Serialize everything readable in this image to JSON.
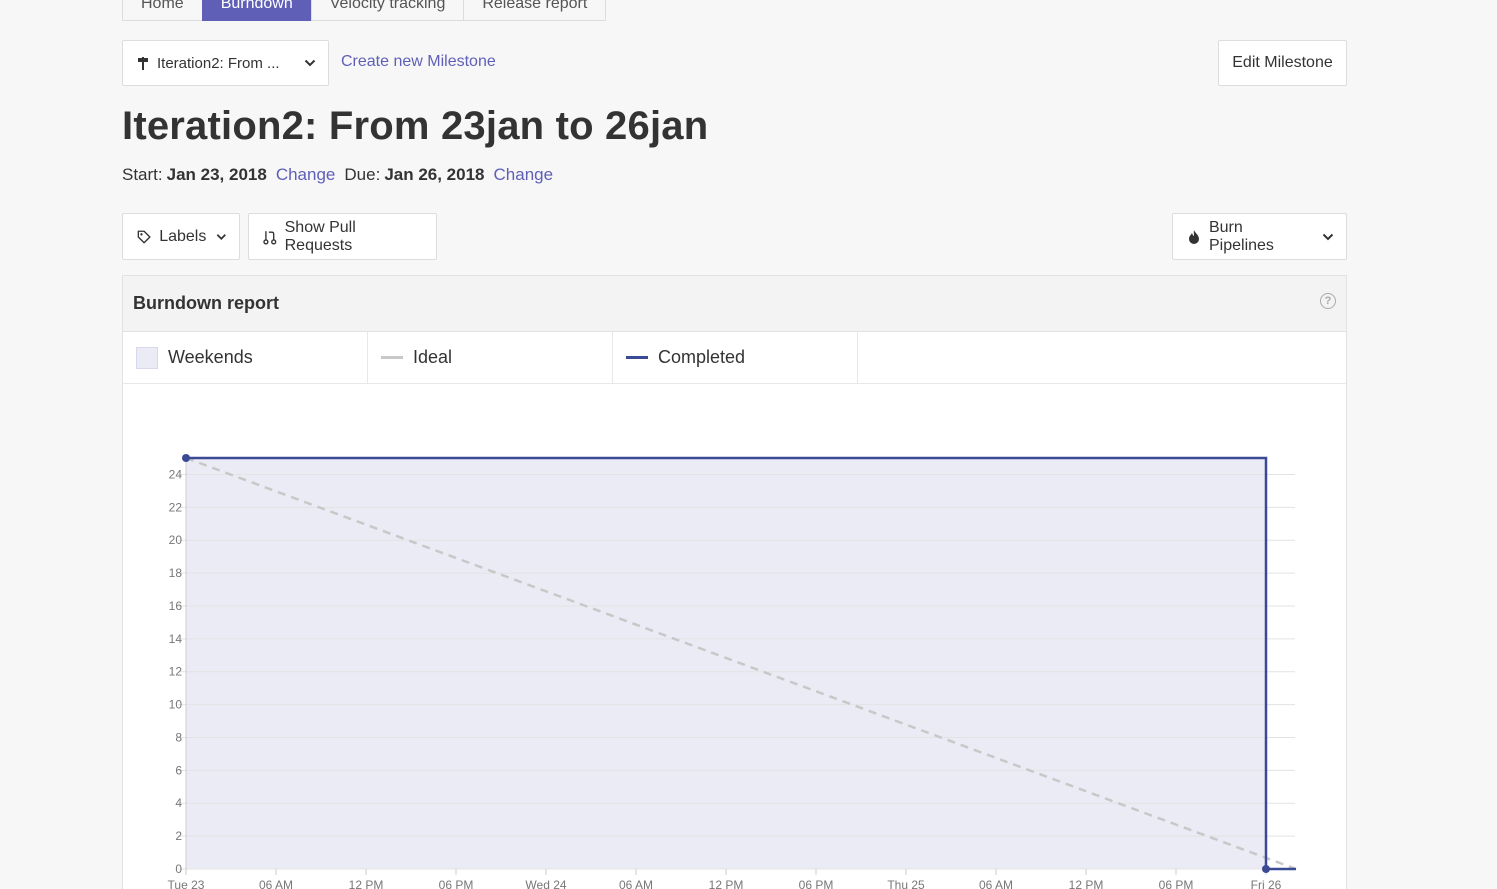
{
  "tabs": [
    {
      "label": "Home",
      "active": false
    },
    {
      "label": "Burndown",
      "active": true
    },
    {
      "label": "Velocity tracking",
      "active": false
    },
    {
      "label": "Release report",
      "active": false
    }
  ],
  "milestone_select": {
    "label": "Iteration2: From ...",
    "icon": "milestone-icon"
  },
  "create_link": "Create new Milestone",
  "edit_button": "Edit Milestone",
  "title": "Iteration2: From 23jan to 26jan",
  "dates": {
    "start_label": "Start:",
    "start_value": "Jan 23, 2018",
    "due_label": "Due:",
    "due_value": "Jan 26, 2018",
    "change_label": "Change"
  },
  "filters": {
    "labels": "Labels",
    "pull_requests": "Show Pull Requests",
    "burn_pipelines": "Burn Pipelines"
  },
  "report": {
    "title": "Burndown report",
    "legend": [
      "Weekends",
      "Ideal",
      "Completed"
    ]
  },
  "colors": {
    "accent": "#5f5fb7",
    "completed": "#3b4a94",
    "ideal": "#c8c8c8",
    "fill": "#ebebf6"
  },
  "chart_data": {
    "type": "line",
    "xlabel": "",
    "ylabel": "",
    "ylim": [
      0,
      25
    ],
    "yticks": [
      0,
      2,
      4,
      6,
      8,
      10,
      12,
      14,
      16,
      18,
      20,
      22,
      24
    ],
    "xticks": [
      "Tue 23",
      "06 AM",
      "12 PM",
      "06 PM",
      "Wed 24",
      "06 AM",
      "12 PM",
      "06 PM",
      "Thu 25",
      "06 AM",
      "12 PM",
      "06 PM",
      "Fri 26"
    ],
    "grid": true,
    "series": [
      {
        "name": "Ideal",
        "style": "dashed",
        "points": [
          [
            0,
            25
          ],
          [
            74,
            0
          ]
        ]
      },
      {
        "name": "Completed",
        "style": "step",
        "points": [
          [
            0,
            25
          ],
          [
            72,
            25
          ],
          [
            72,
            0
          ],
          [
            74,
            0
          ]
        ]
      }
    ]
  }
}
